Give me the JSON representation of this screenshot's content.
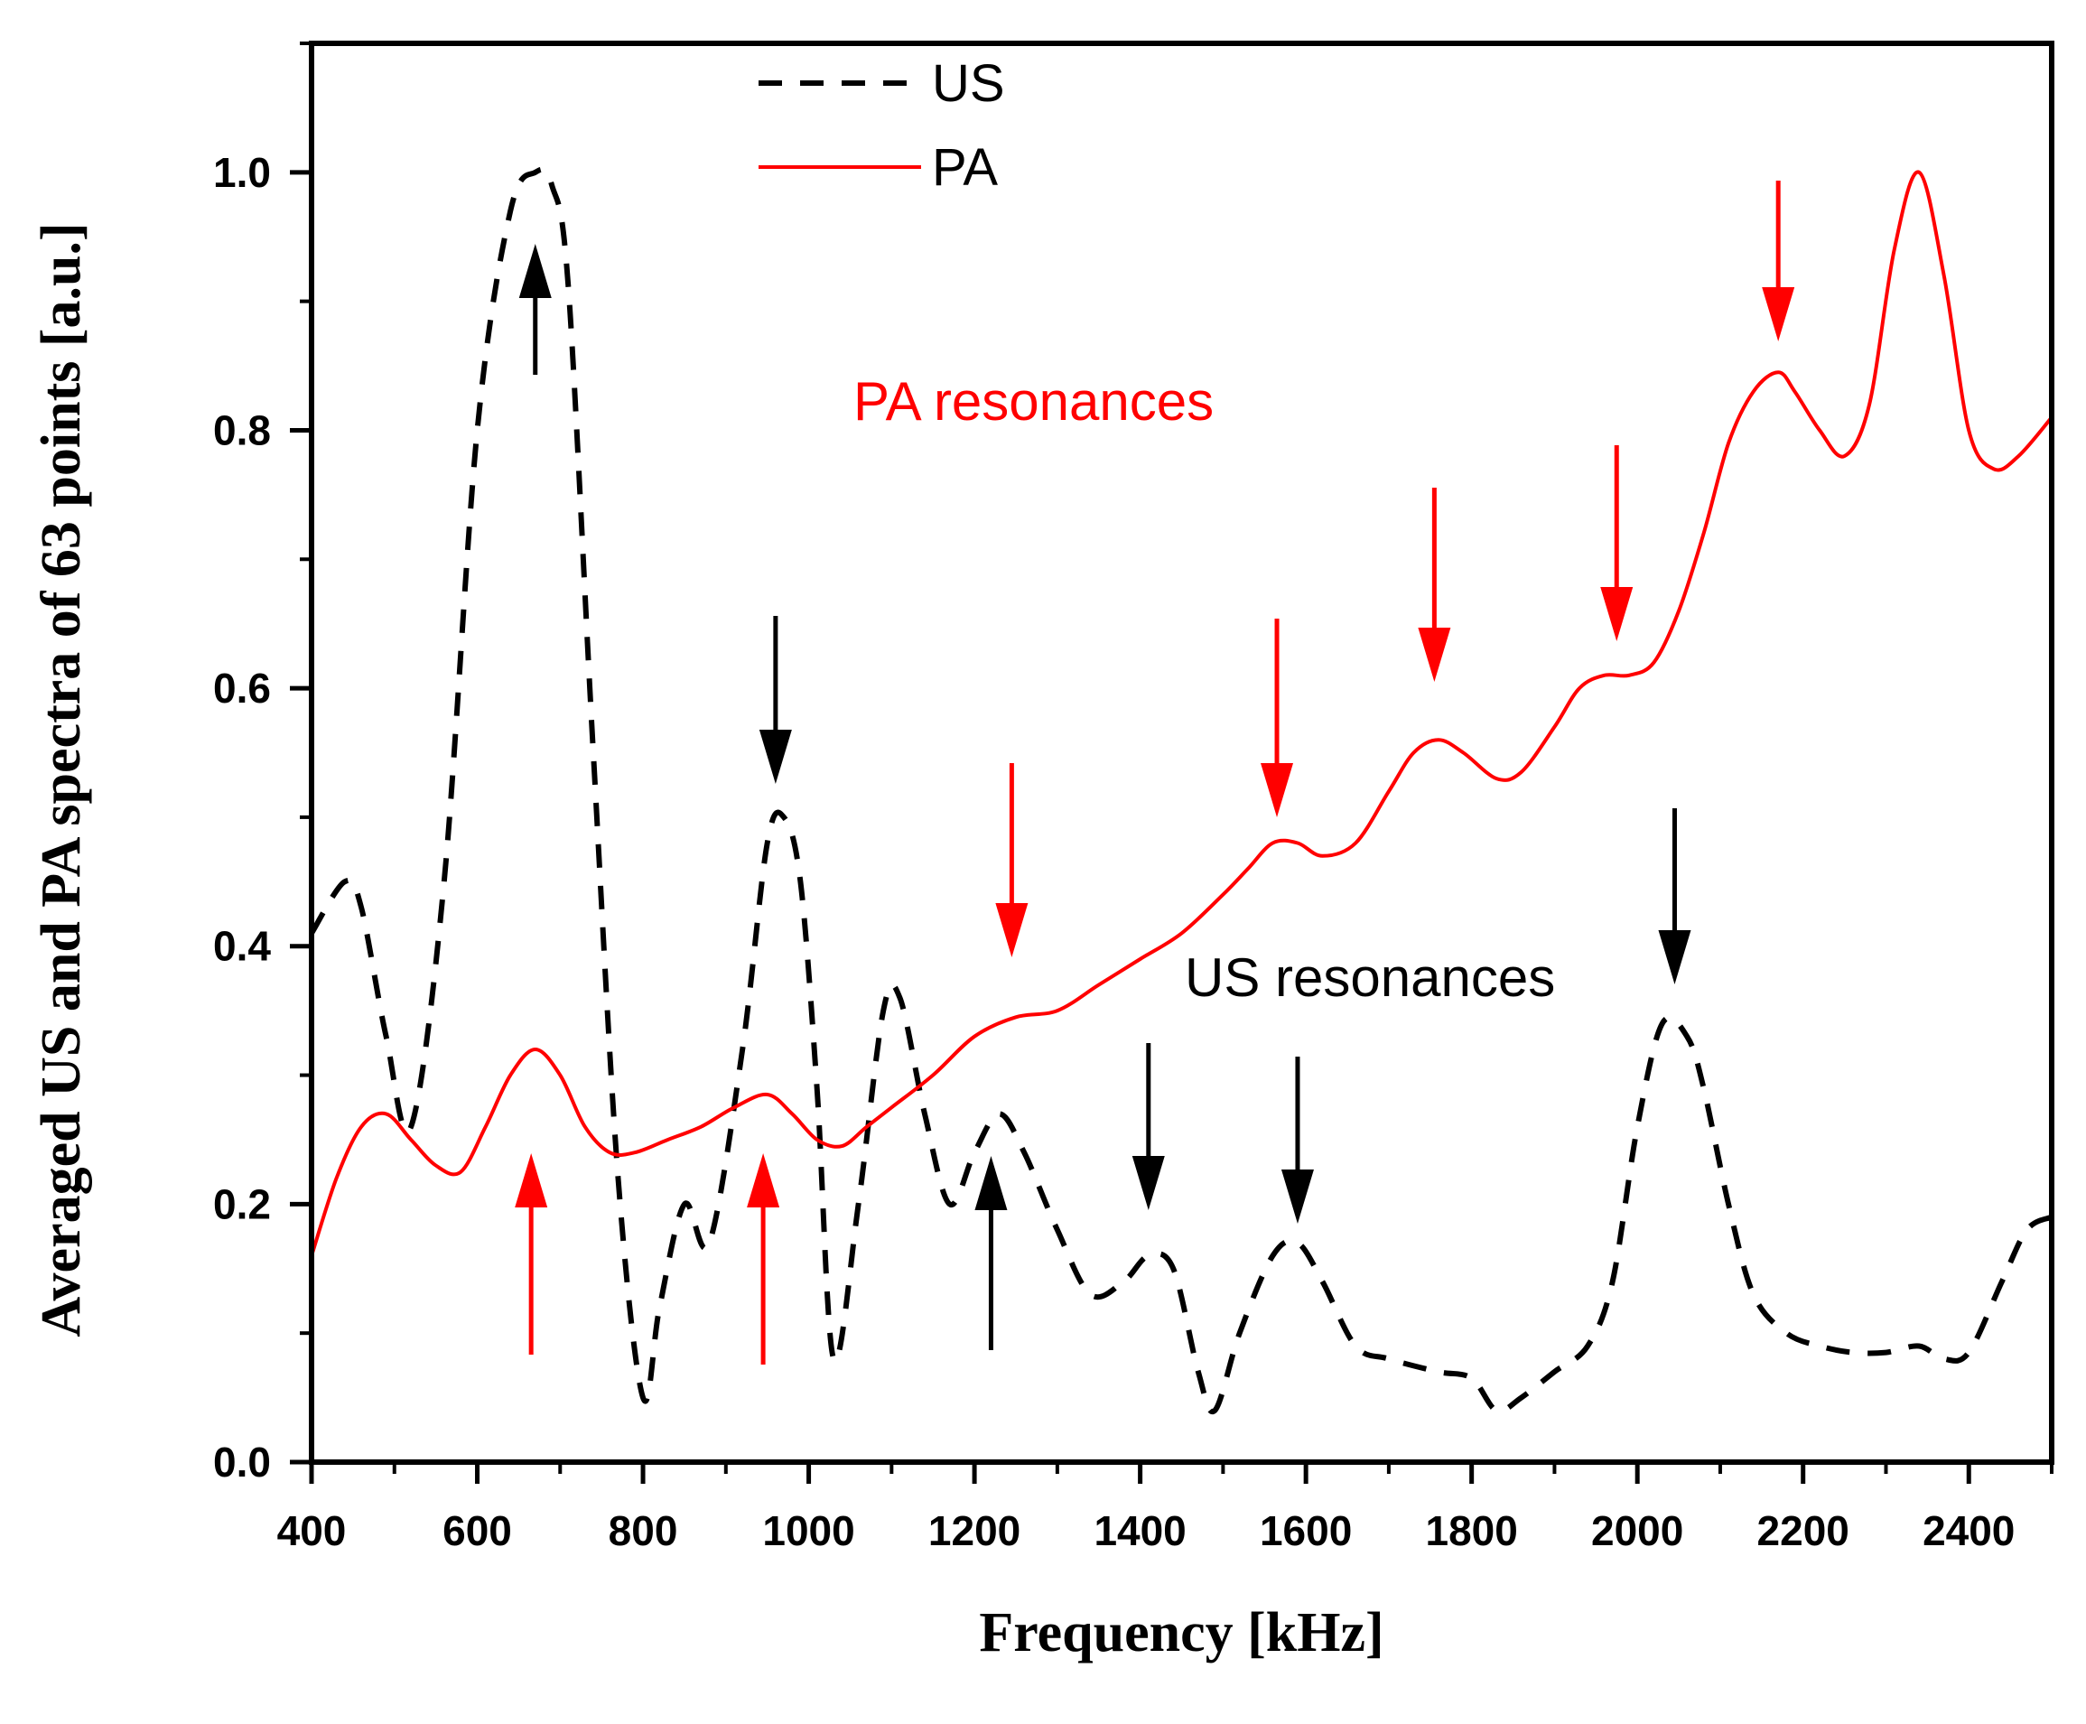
{
  "chart_data": {
    "type": "line",
    "title": "",
    "xlabel": "Frequency [kHz]",
    "ylabel": "Averaged US and PA spectra of 63 points [a.u.]",
    "xlim": [
      400,
      2500
    ],
    "ylim": [
      0,
      1.1
    ],
    "xticks": [
      400,
      600,
      800,
      1000,
      1200,
      1400,
      1600,
      1800,
      2000,
      2200,
      2400
    ],
    "xtick_labels": [
      "400",
      "600",
      "800",
      "1000",
      "1200",
      "1400",
      "1600",
      "1800",
      "2000",
      "2200",
      "2400"
    ],
    "yticks": [
      0,
      0.2,
      0.4,
      0.6,
      0.8,
      1.0
    ],
    "ytick_labels": [
      "0.0",
      "0.2",
      "0.4",
      "0.6",
      "0.8",
      "1.0"
    ],
    "legend": {
      "position": "top-center",
      "entries": [
        "US",
        "PA"
      ]
    },
    "series": [
      {
        "name": "US",
        "style": "dashed",
        "color": "#000000",
        "x": [
          400,
          440,
          460,
          490,
          520,
          560,
          600,
          640,
          670,
          690,
          710,
          740,
          770,
          800,
          820,
          850,
          880,
          920,
          950,
          970,
          990,
          1010,
          1030,
          1060,
          1090,
          1110,
          1140,
          1170,
          1200,
          1230,
          1260,
          1300,
          1340,
          1380,
          1410,
          1440,
          1470,
          1490,
          1520,
          1560,
          1590,
          1620,
          1660,
          1700,
          1760,
          1800,
          1830,
          1860,
          1900,
          1940,
          1970,
          2000,
          2030,
          2060,
          2080,
          2110,
          2140,
          2180,
          2220,
          2260,
          2300,
          2340,
          2370,
          2400,
          2440,
          2470,
          2500
        ],
        "values": [
          0.41,
          0.45,
          0.43,
          0.33,
          0.26,
          0.45,
          0.8,
          0.97,
          1.0,
          0.99,
          0.91,
          0.55,
          0.22,
          0.05,
          0.12,
          0.2,
          0.17,
          0.32,
          0.48,
          0.5,
          0.45,
          0.29,
          0.08,
          0.2,
          0.35,
          0.36,
          0.27,
          0.2,
          0.24,
          0.27,
          0.24,
          0.18,
          0.13,
          0.14,
          0.16,
          0.15,
          0.07,
          0.04,
          0.1,
          0.16,
          0.17,
          0.14,
          0.09,
          0.08,
          0.07,
          0.065,
          0.04,
          0.05,
          0.07,
          0.09,
          0.14,
          0.26,
          0.34,
          0.33,
          0.29,
          0.2,
          0.13,
          0.1,
          0.09,
          0.085,
          0.085,
          0.09,
          0.08,
          0.085,
          0.14,
          0.18,
          0.19
        ]
      },
      {
        "name": "PA",
        "style": "solid",
        "color": "#ff0000",
        "x": [
          400,
          430,
          460,
          490,
          520,
          550,
          580,
          610,
          640,
          670,
          700,
          730,
          760,
          790,
          830,
          870,
          910,
          950,
          980,
          1010,
          1040,
          1070,
          1100,
          1150,
          1200,
          1250,
          1300,
          1350,
          1400,
          1450,
          1500,
          1530,
          1560,
          1590,
          1620,
          1660,
          1700,
          1730,
          1760,
          1790,
          1830,
          1860,
          1900,
          1930,
          1960,
          1990,
          2020,
          2050,
          2080,
          2110,
          2140,
          2170,
          2190,
          2220,
          2250,
          2280,
          2310,
          2340,
          2370,
          2400,
          2430,
          2460,
          2500
        ],
        "values": [
          0.16,
          0.22,
          0.26,
          0.27,
          0.25,
          0.23,
          0.225,
          0.26,
          0.3,
          0.32,
          0.3,
          0.26,
          0.24,
          0.24,
          0.25,
          0.26,
          0.275,
          0.285,
          0.27,
          0.25,
          0.245,
          0.26,
          0.275,
          0.3,
          0.33,
          0.345,
          0.35,
          0.37,
          0.39,
          0.41,
          0.44,
          0.46,
          0.48,
          0.48,
          0.47,
          0.48,
          0.52,
          0.55,
          0.56,
          0.55,
          0.53,
          0.535,
          0.57,
          0.6,
          0.61,
          0.61,
          0.62,
          0.66,
          0.72,
          0.79,
          0.83,
          0.845,
          0.83,
          0.8,
          0.78,
          0.82,
          0.94,
          1.0,
          0.92,
          0.8,
          0.77,
          0.78,
          0.81
        ]
      }
    ],
    "annotations": [
      {
        "text": "PA resonances",
        "color": "#ff0000",
        "x": 1160,
        "y": 0.82
      },
      {
        "text": "US resonances",
        "color": "#000000",
        "x": 1450,
        "y": 0.39
      }
    ],
    "pa_resonance_arrows": [
      {
        "freq": 665,
        "direction": "up"
      },
      {
        "freq": 945,
        "direction": "up"
      },
      {
        "freq": 1245,
        "direction": "down"
      },
      {
        "freq": 1565,
        "direction": "down"
      },
      {
        "freq": 1755,
        "direction": "down"
      },
      {
        "freq": 1975,
        "direction": "down"
      },
      {
        "freq": 2170,
        "direction": "down"
      }
    ],
    "us_resonance_arrows": [
      {
        "freq": 670,
        "direction": "up"
      },
      {
        "freq": 960,
        "direction": "down"
      },
      {
        "freq": 1220,
        "direction": "up"
      },
      {
        "freq": 1410,
        "direction": "down"
      },
      {
        "freq": 1590,
        "direction": "down"
      },
      {
        "freq": 2045,
        "direction": "down"
      }
    ]
  }
}
